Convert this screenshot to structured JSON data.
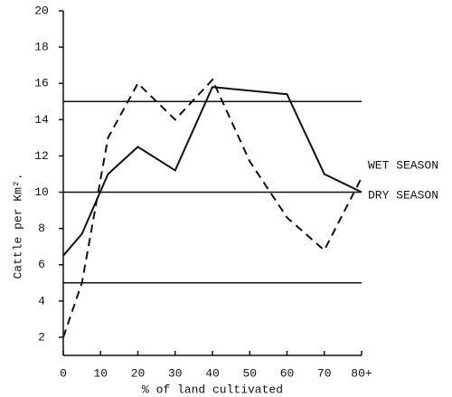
{
  "chart_data": {
    "type": "line",
    "xlabel": "% of land cultivated",
    "ylabel": "Cattle per Km².",
    "xlim": [
      0,
      80
    ],
    "ylim": [
      1,
      20
    ],
    "xticks": [
      0,
      10,
      20,
      30,
      40,
      50,
      60,
      70,
      {
        "value": 80,
        "label": "80+"
      }
    ],
    "yticks": [
      2,
      4,
      6,
      8,
      10,
      12,
      14,
      16,
      18,
      20
    ],
    "hlines": [
      5,
      10,
      15
    ],
    "series": [
      {
        "name": "WET SEASON",
        "color": "#111111",
        "style": "dashed",
        "x": [
          0,
          5,
          12,
          20,
          30,
          40,
          50,
          60,
          70,
          80
        ],
        "values": [
          2,
          5,
          13,
          16,
          14,
          16.2,
          11.7,
          8.6,
          6.8,
          10.8
        ]
      },
      {
        "name": "DRY SEASON",
        "color": "#111111",
        "style": "solid",
        "x": [
          0,
          5,
          12,
          20,
          30,
          40,
          50,
          60,
          70,
          80
        ],
        "values": [
          6.5,
          7.7,
          11,
          12.5,
          11.2,
          15.8,
          15.6,
          15.4,
          11,
          10
        ]
      }
    ]
  }
}
